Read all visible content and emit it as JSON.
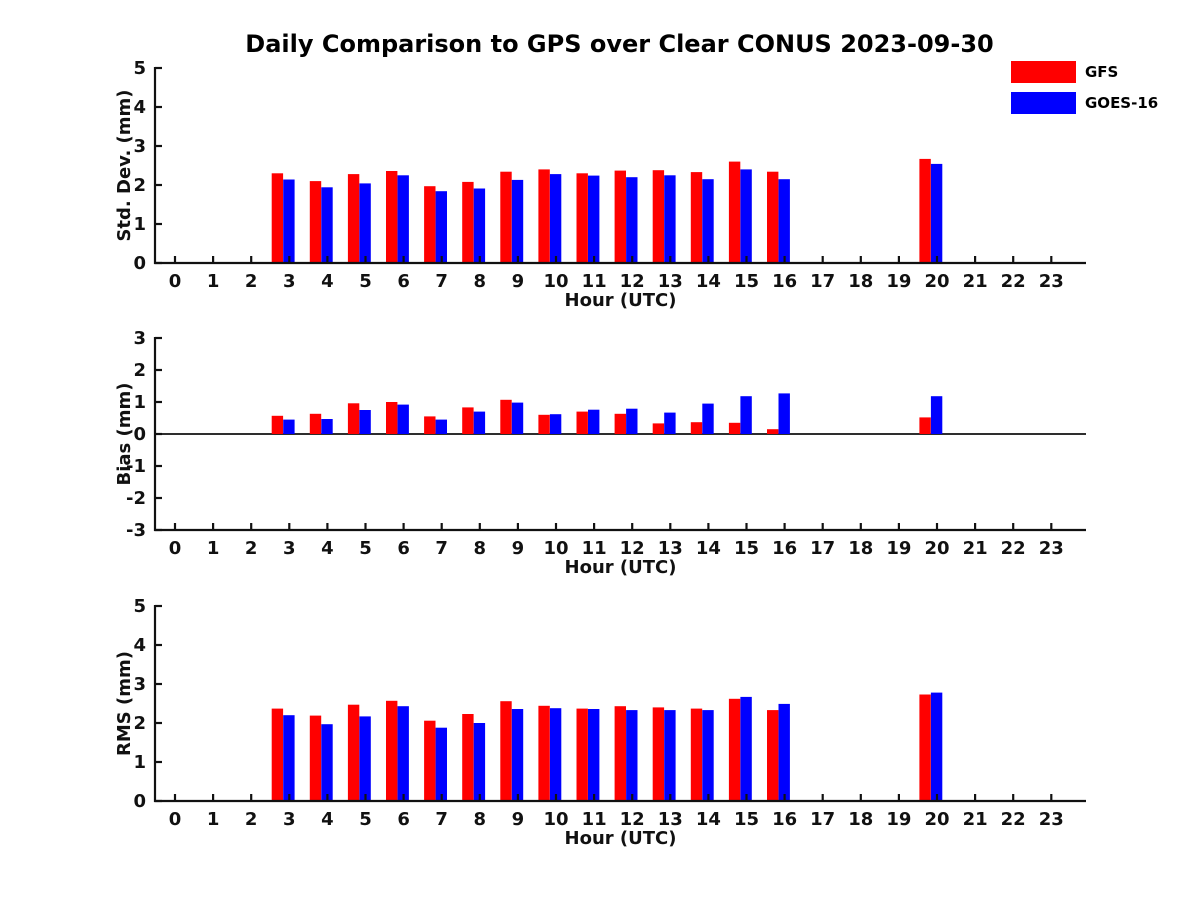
{
  "title": "Daily Comparison to GPS over Clear CONUS 2023-09-30",
  "legend": {
    "items": [
      {
        "label": "GFS",
        "color": "#ff0000"
      },
      {
        "label": "GOES-16",
        "color": "#0000ff"
      }
    ]
  },
  "colors": {
    "gfs": "#ff0000",
    "goes16": "#0000ff",
    "axis": "#111111"
  },
  "chart_data": [
    {
      "type": "bar",
      "name": "std_dev",
      "ylabel": "Std. Dev. (mm)",
      "xlabel": "Hour (UTC)",
      "ylim": [
        0,
        5
      ],
      "yticks": [
        0,
        1,
        2,
        3,
        4,
        5
      ],
      "xticks": [
        0,
        1,
        2,
        3,
        4,
        5,
        6,
        7,
        8,
        9,
        10,
        11,
        12,
        13,
        14,
        15,
        16,
        17,
        18,
        19,
        20,
        21,
        22,
        23
      ],
      "x": [
        3,
        4,
        5,
        6,
        7,
        8,
        9,
        10,
        11,
        12,
        13,
        14,
        15,
        16,
        20
      ],
      "zero_line": false,
      "grid": false,
      "series": [
        {
          "name": "GFS",
          "color": "#ff0000",
          "values": [
            2.3,
            2.1,
            2.28,
            2.36,
            1.97,
            2.08,
            2.34,
            2.4,
            2.3,
            2.37,
            2.38,
            2.33,
            2.6,
            2.34,
            2.67
          ]
        },
        {
          "name": "GOES-16",
          "color": "#0000ff",
          "values": [
            2.14,
            1.94,
            2.04,
            2.25,
            1.84,
            1.91,
            2.13,
            2.28,
            2.24,
            2.2,
            2.25,
            2.15,
            2.4,
            2.15,
            2.54
          ]
        }
      ]
    },
    {
      "type": "bar",
      "name": "bias",
      "ylabel": "Bias (mm)",
      "xlabel": "Hour (UTC)",
      "ylim": [
        -3,
        3
      ],
      "yticks": [
        -3,
        -2,
        -1,
        0,
        1,
        2,
        3
      ],
      "xticks": [
        0,
        1,
        2,
        3,
        4,
        5,
        6,
        7,
        8,
        9,
        10,
        11,
        12,
        13,
        14,
        15,
        16,
        17,
        18,
        19,
        20,
        21,
        22,
        23
      ],
      "x": [
        3,
        4,
        5,
        6,
        7,
        8,
        9,
        10,
        11,
        12,
        13,
        14,
        15,
        16,
        20
      ],
      "zero_line": true,
      "grid": false,
      "series": [
        {
          "name": "GFS",
          "color": "#ff0000",
          "values": [
            0.57,
            0.63,
            0.96,
            1.0,
            0.55,
            0.83,
            1.07,
            0.6,
            0.7,
            0.63,
            0.33,
            0.37,
            0.35,
            0.15,
            0.52
          ]
        },
        {
          "name": "GOES-16",
          "color": "#0000ff",
          "values": [
            0.45,
            0.47,
            0.75,
            0.92,
            0.45,
            0.7,
            0.98,
            0.62,
            0.76,
            0.79,
            0.67,
            0.95,
            1.18,
            1.27,
            1.18
          ]
        }
      ]
    },
    {
      "type": "bar",
      "name": "rms",
      "ylabel": "RMS (mm)",
      "xlabel": "Hour (UTC)",
      "ylim": [
        0,
        5
      ],
      "yticks": [
        0,
        1,
        2,
        3,
        4,
        5
      ],
      "xticks": [
        0,
        1,
        2,
        3,
        4,
        5,
        6,
        7,
        8,
        9,
        10,
        11,
        12,
        13,
        14,
        15,
        16,
        17,
        18,
        19,
        20,
        21,
        22,
        23
      ],
      "x": [
        3,
        4,
        5,
        6,
        7,
        8,
        9,
        10,
        11,
        12,
        13,
        14,
        15,
        16,
        20
      ],
      "zero_line": false,
      "grid": false,
      "series": [
        {
          "name": "GFS",
          "color": "#ff0000",
          "values": [
            2.37,
            2.19,
            2.47,
            2.57,
            2.06,
            2.23,
            2.56,
            2.44,
            2.37,
            2.43,
            2.4,
            2.37,
            2.62,
            2.33,
            2.73
          ]
        },
        {
          "name": "GOES-16",
          "color": "#0000ff",
          "values": [
            2.2,
            1.97,
            2.17,
            2.43,
            1.88,
            2.0,
            2.36,
            2.38,
            2.36,
            2.33,
            2.33,
            2.33,
            2.67,
            2.49,
            2.78
          ]
        }
      ]
    }
  ]
}
